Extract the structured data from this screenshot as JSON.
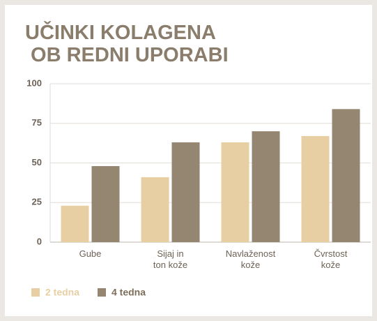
{
  "chart_data": {
    "type": "bar",
    "title": "UČINKI KOLAGENA\nOB REDNI UPORABI",
    "categories": [
      "Gube",
      "Sijaj in\nton kože",
      "Navlaženost\nkože",
      "Čvrstost\nkože"
    ],
    "series": [
      {
        "name": "2 tedna",
        "color": "#e8cfa3",
        "values": [
          23,
          41,
          63,
          67
        ]
      },
      {
        "name": "4 tedna",
        "color": "#958672",
        "values": [
          48,
          63,
          70,
          84
        ]
      }
    ],
    "ylim": [
      0,
      100
    ],
    "yticks": [
      0,
      25,
      50,
      75,
      100
    ],
    "grid": true,
    "legend": "bottom-left"
  }
}
